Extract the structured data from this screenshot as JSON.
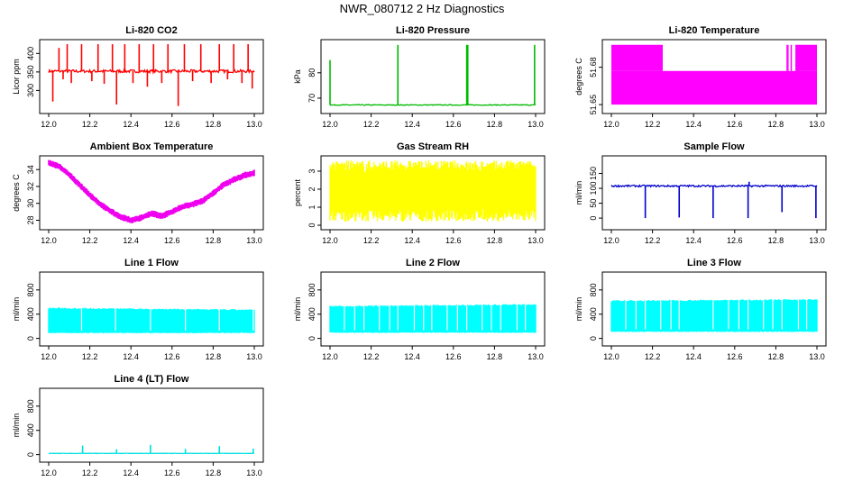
{
  "page_title": "NWR_080712  2 Hz Diagnostics",
  "chart_data": [
    {
      "type": "line",
      "title": "Li-820 CO2",
      "xlabel": "",
      "ylabel": "Licor ppm",
      "color": "#ff0000",
      "xlim": [
        12.0,
        13.0
      ],
      "ylim": [
        245,
        430
      ],
      "x_ticks": [
        "12.0",
        "12.2",
        "12.4",
        "12.6",
        "12.8",
        "13.0"
      ],
      "y_ticks": [
        {
          "value": 300,
          "label": "300"
        },
        {
          "value": 350,
          "label": "350"
        },
        {
          "value": 400,
          "label": "400"
        }
      ],
      "series": [
        {
          "baseline": 352,
          "noise": 4,
          "spikes": [
            {
              "x": 12.02,
              "y": 270
            },
            {
              "x": 12.05,
              "y": 415
            },
            {
              "x": 12.07,
              "y": 330
            },
            {
              "x": 12.09,
              "y": 425
            },
            {
              "x": 12.11,
              "y": 320
            },
            {
              "x": 12.16,
              "y": 425
            },
            {
              "x": 12.21,
              "y": 325
            },
            {
              "x": 12.24,
              "y": 425
            },
            {
              "x": 12.27,
              "y": 318
            },
            {
              "x": 12.31,
              "y": 425
            },
            {
              "x": 12.33,
              "y": 262
            },
            {
              "x": 12.37,
              "y": 425
            },
            {
              "x": 12.41,
              "y": 320
            },
            {
              "x": 12.44,
              "y": 425
            },
            {
              "x": 12.48,
              "y": 310
            },
            {
              "x": 12.51,
              "y": 425
            },
            {
              "x": 12.55,
              "y": 320
            },
            {
              "x": 12.58,
              "y": 425
            },
            {
              "x": 12.63,
              "y": 258
            },
            {
              "x": 12.66,
              "y": 425
            },
            {
              "x": 12.7,
              "y": 325
            },
            {
              "x": 12.74,
              "y": 425
            },
            {
              "x": 12.79,
              "y": 320
            },
            {
              "x": 12.83,
              "y": 425
            },
            {
              "x": 12.87,
              "y": 330
            },
            {
              "x": 12.9,
              "y": 425
            },
            {
              "x": 12.94,
              "y": 320
            },
            {
              "x": 12.97,
              "y": 425
            },
            {
              "x": 12.99,
              "y": 305
            }
          ]
        }
      ]
    },
    {
      "type": "line",
      "title": "Li-820 Pressure",
      "xlabel": "",
      "ylabel": "kPa",
      "color": "#00bb00",
      "xlim": [
        12.0,
        13.0
      ],
      "ylim": [
        65,
        92
      ],
      "x_ticks": [
        "12.0",
        "12.2",
        "12.4",
        "12.6",
        "12.8",
        "13.0"
      ],
      "y_ticks": [
        {
          "value": 70,
          "label": "70"
        },
        {
          "value": 80,
          "label": "80"
        }
      ],
      "series": [
        {
          "baseline": 67.3,
          "noise": 0.15,
          "spikes": [
            {
              "x": 12.0,
              "y": 85
            },
            {
              "x": 12.33,
              "y": 91
            },
            {
              "x": 12.665,
              "y": 91
            },
            {
              "x": 12.67,
              "y": 91
            },
            {
              "x": 12.995,
              "y": 91
            }
          ]
        }
      ]
    },
    {
      "type": "area",
      "title": "Li-820 Temperature",
      "xlabel": "",
      "ylabel": "degrees C",
      "color": "#ff00ff",
      "xlim": [
        12.0,
        13.0
      ],
      "ylim": [
        51.645,
        51.7
      ],
      "x_ticks": [
        "12.0",
        "12.2",
        "12.4",
        "12.6",
        "12.8",
        "13.0"
      ],
      "y_ticks": [
        {
          "value": 51.65,
          "label": "51.65"
        },
        {
          "value": 51.68,
          "label": "51.68"
        }
      ],
      "series": [
        {
          "low": 51.65,
          "high": 51.677,
          "full_high": 51.698,
          "full_high_x": [
            [
              12.0,
              12.25
            ],
            [
              12.855,
              12.86
            ],
            [
              12.875,
              12.88
            ],
            [
              12.895,
              13.0
            ]
          ]
        }
      ]
    },
    {
      "type": "line",
      "title": "Ambient Box Temperature",
      "xlabel": "",
      "ylabel": "degrees C",
      "color": "#ee00ee",
      "xlim": [
        12.0,
        13.0
      ],
      "ylim": [
        27.2,
        35.3
      ],
      "x_ticks": [
        "12.0",
        "12.2",
        "12.4",
        "12.6",
        "12.8",
        "13.0"
      ],
      "y_ticks": [
        {
          "value": 28,
          "label": "28"
        },
        {
          "value": 30,
          "label": "30"
        },
        {
          "value": 32,
          "label": "32"
        },
        {
          "value": 34,
          "label": "34"
        }
      ],
      "series": [
        {
          "band": 0.5,
          "points": [
            {
              "x": 12.0,
              "y": 34.8
            },
            {
              "x": 12.05,
              "y": 34.4
            },
            {
              "x": 12.1,
              "y": 33.4
            },
            {
              "x": 12.15,
              "y": 32.2
            },
            {
              "x": 12.2,
              "y": 31.0
            },
            {
              "x": 12.25,
              "y": 29.9
            },
            {
              "x": 12.3,
              "y": 29.1
            },
            {
              "x": 12.35,
              "y": 28.4
            },
            {
              "x": 12.4,
              "y": 28.0
            },
            {
              "x": 12.45,
              "y": 28.3
            },
            {
              "x": 12.5,
              "y": 28.8
            },
            {
              "x": 12.55,
              "y": 28.5
            },
            {
              "x": 12.6,
              "y": 29.0
            },
            {
              "x": 12.65,
              "y": 29.6
            },
            {
              "x": 12.7,
              "y": 29.9
            },
            {
              "x": 12.75,
              "y": 30.3
            },
            {
              "x": 12.8,
              "y": 31.2
            },
            {
              "x": 12.85,
              "y": 32.2
            },
            {
              "x": 12.9,
              "y": 32.8
            },
            {
              "x": 12.95,
              "y": 33.3
            },
            {
              "x": 13.0,
              "y": 33.6
            }
          ]
        }
      ]
    },
    {
      "type": "area",
      "title": "Gas Stream RH",
      "xlabel": "",
      "ylabel": "percent",
      "color": "#ffff00",
      "xlim": [
        12.0,
        13.0
      ],
      "ylim": [
        -0.1,
        3.7
      ],
      "x_ticks": [
        "12.0",
        "12.2",
        "12.4",
        "12.6",
        "12.8",
        "13.0"
      ],
      "y_ticks": [
        {
          "value": 0,
          "label": "0"
        },
        {
          "value": 1,
          "label": "1"
        },
        {
          "value": 2,
          "label": "2"
        },
        {
          "value": 3,
          "label": "3"
        }
      ],
      "series": [
        {
          "low": 0.5,
          "high": 3.3,
          "low_min": 0.2,
          "high_max": 3.6
        }
      ]
    },
    {
      "type": "line",
      "title": "Sample Flow",
      "xlabel": "",
      "ylabel": "ml/min",
      "color": "#0000cc",
      "xlim": [
        12.0,
        13.0
      ],
      "ylim": [
        -30,
        200
      ],
      "x_ticks": [
        "12.0",
        "12.2",
        "12.4",
        "12.6",
        "12.8",
        "13.0"
      ],
      "y_ticks": [
        {
          "value": 0,
          "label": "0"
        },
        {
          "value": 50,
          "label": "50"
        },
        {
          "value": 100,
          "label": "100"
        },
        {
          "value": 150,
          "label": "150"
        }
      ],
      "series": [
        {
          "baseline": 108,
          "noise": 3,
          "spikes": [
            {
              "x": 12.165,
              "y": 0
            },
            {
              "x": 12.33,
              "y": 2
            },
            {
              "x": 12.495,
              "y": 0
            },
            {
              "x": 12.665,
              "y": 0
            },
            {
              "x": 12.67,
              "y": 122
            },
            {
              "x": 12.83,
              "y": 20
            },
            {
              "x": 12.995,
              "y": 0
            }
          ]
        }
      ]
    },
    {
      "type": "area",
      "title": "Line 1 Flow",
      "xlabel": "",
      "ylabel": "ml/min",
      "color": "#00ffff",
      "xlim": [
        12.0,
        13.0
      ],
      "ylim": [
        -80,
        1050
      ],
      "x_ticks": [
        "12.0",
        "12.2",
        "12.4",
        "12.6",
        "12.8",
        "13.0"
      ],
      "y_ticks": [
        {
          "value": 0,
          "label": "0"
        },
        {
          "value": 400,
          "label": "400"
        },
        {
          "value": 800,
          "label": "800"
        }
      ],
      "series": [
        {
          "low": 90,
          "high": 500,
          "high_end": 470,
          "gaps": [
            12.16,
            12.325,
            12.495,
            12.665,
            12.83,
            12.995
          ]
        }
      ]
    },
    {
      "type": "area",
      "title": "Line 2 Flow",
      "xlabel": "",
      "ylabel": "ml/min",
      "color": "#00ffff",
      "xlim": [
        12.0,
        13.0
      ],
      "ylim": [
        -80,
        1050
      ],
      "x_ticks": [
        "12.0",
        "12.2",
        "12.4",
        "12.6",
        "12.8",
        "13.0"
      ],
      "y_ticks": [
        {
          "value": 0,
          "label": "0"
        },
        {
          "value": 400,
          "label": "400"
        },
        {
          "value": 800,
          "label": "800"
        }
      ],
      "series": [
        {
          "low": 95,
          "high": 530,
          "high_end": 560,
          "gaps": [
            12.07,
            12.12,
            12.165,
            12.24,
            12.29,
            12.33,
            12.41,
            12.455,
            12.495,
            12.57,
            12.62,
            12.665,
            12.74,
            12.785,
            12.83,
            12.91,
            12.95
          ]
        }
      ]
    },
    {
      "type": "area",
      "title": "Line 3 Flow",
      "xlabel": "",
      "ylabel": "ml/min",
      "color": "#00ffff",
      "xlim": [
        12.0,
        13.0
      ],
      "ylim": [
        -80,
        1050
      ],
      "x_ticks": [
        "12.0",
        "12.2",
        "12.4",
        "12.6",
        "12.8",
        "13.0"
      ],
      "y_ticks": [
        {
          "value": 0,
          "label": "0"
        },
        {
          "value": 400,
          "label": "400"
        },
        {
          "value": 800,
          "label": "800"
        }
      ],
      "series": [
        {
          "low": 110,
          "high": 620,
          "high_end": 640,
          "gaps": [
            12.07,
            12.12,
            12.165,
            12.24,
            12.29,
            12.33,
            12.495,
            12.57,
            12.62,
            12.665,
            12.74,
            12.785,
            12.83,
            12.91,
            12.95
          ]
        }
      ]
    },
    {
      "type": "line",
      "title": "Line 4 (LT) Flow",
      "xlabel": "",
      "ylabel": "ml/min",
      "color": "#00e0e0",
      "xlim": [
        12.0,
        13.0
      ],
      "ylim": [
        -80,
        1050
      ],
      "x_ticks": [
        "12.0",
        "12.2",
        "12.4",
        "12.6",
        "12.8",
        "13.0"
      ],
      "y_ticks": [
        {
          "value": 0,
          "label": "0"
        },
        {
          "value": 400,
          "label": "400"
        },
        {
          "value": 800,
          "label": "800"
        }
      ],
      "series": [
        {
          "baseline": 20,
          "noise": 3,
          "spikes": [
            {
              "x": 12.165,
              "y": 150
            },
            {
              "x": 12.33,
              "y": 90
            },
            {
              "x": 12.495,
              "y": 160
            },
            {
              "x": 12.665,
              "y": 95
            },
            {
              "x": 12.83,
              "y": 140
            },
            {
              "x": 12.995,
              "y": 100
            }
          ]
        }
      ]
    }
  ]
}
